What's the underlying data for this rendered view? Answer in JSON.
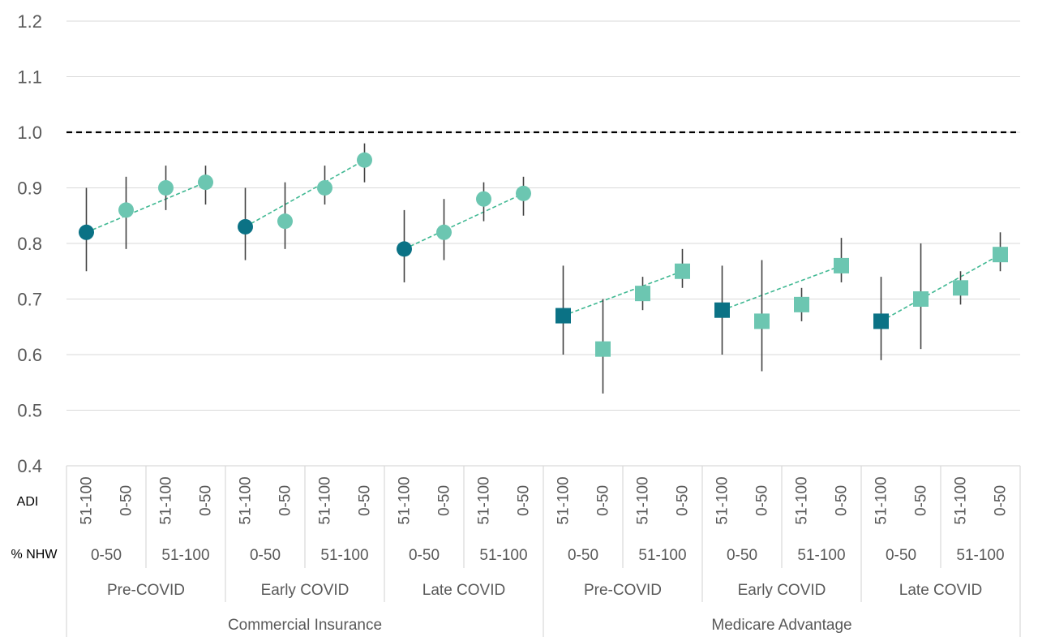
{
  "chart_data": {
    "type": "scatter",
    "ylim": [
      0.4,
      1.2
    ],
    "yticks": [
      "1.2",
      "1.1",
      "1.0",
      "0.9",
      "0.8",
      "0.7",
      "0.6",
      "0.5",
      "0.4"
    ],
    "grid": true,
    "reference_line": 1.0,
    "row_labels": {
      "adi": "ADI",
      "nhw": "% NHW"
    },
    "groups": [
      {
        "name": "Commercial Insurance",
        "marker": "circle",
        "periods": [
          {
            "name": "Pre-COVID",
            "nhw": [
              {
                "label": "0-50",
                "points": [
                  {
                    "adi": "51-100",
                    "y": 0.82,
                    "low": 0.75,
                    "high": 0.9,
                    "ref": true
                  },
                  {
                    "adi": "0-50",
                    "y": 0.86,
                    "low": 0.79,
                    "high": 0.92
                  }
                ]
              },
              {
                "label": "51-100",
                "points": [
                  {
                    "adi": "51-100",
                    "y": 0.9,
                    "low": 0.86,
                    "high": 0.94
                  },
                  {
                    "adi": "0-50",
                    "y": 0.91,
                    "low": 0.87,
                    "high": 0.94
                  }
                ]
              }
            ]
          },
          {
            "name": "Early COVID",
            "nhw": [
              {
                "label": "0-50",
                "points": [
                  {
                    "adi": "51-100",
                    "y": 0.83,
                    "low": 0.77,
                    "high": 0.9,
                    "ref": true
                  },
                  {
                    "adi": "0-50",
                    "y": 0.84,
                    "low": 0.79,
                    "high": 0.91
                  }
                ]
              },
              {
                "label": "51-100",
                "points": [
                  {
                    "adi": "51-100",
                    "y": 0.9,
                    "low": 0.87,
                    "high": 0.94
                  },
                  {
                    "adi": "0-50",
                    "y": 0.95,
                    "low": 0.91,
                    "high": 0.98
                  }
                ]
              }
            ]
          },
          {
            "name": "Late COVID",
            "nhw": [
              {
                "label": "0-50",
                "points": [
                  {
                    "adi": "51-100",
                    "y": 0.79,
                    "low": 0.73,
                    "high": 0.86,
                    "ref": true
                  },
                  {
                    "adi": "0-50",
                    "y": 0.82,
                    "low": 0.77,
                    "high": 0.88
                  }
                ]
              },
              {
                "label": "51-100",
                "points": [
                  {
                    "adi": "51-100",
                    "y": 0.88,
                    "low": 0.84,
                    "high": 0.91
                  },
                  {
                    "adi": "0-50",
                    "y": 0.89,
                    "low": 0.85,
                    "high": 0.92
                  }
                ]
              }
            ]
          }
        ]
      },
      {
        "name": "Medicare Advantage",
        "marker": "square",
        "periods": [
          {
            "name": "Pre-COVID",
            "nhw": [
              {
                "label": "0-50",
                "points": [
                  {
                    "adi": "51-100",
                    "y": 0.67,
                    "low": 0.6,
                    "high": 0.76,
                    "ref": true
                  },
                  {
                    "adi": "0-50",
                    "y": 0.61,
                    "low": 0.53,
                    "high": 0.7
                  }
                ]
              },
              {
                "label": "51-100",
                "points": [
                  {
                    "adi": "51-100",
                    "y": 0.71,
                    "low": 0.68,
                    "high": 0.74
                  },
                  {
                    "adi": "0-50",
                    "y": 0.75,
                    "low": 0.72,
                    "high": 0.79
                  }
                ]
              }
            ]
          },
          {
            "name": "Early COVID",
            "nhw": [
              {
                "label": "0-50",
                "points": [
                  {
                    "adi": "51-100",
                    "y": 0.68,
                    "low": 0.6,
                    "high": 0.76,
                    "ref": true
                  },
                  {
                    "adi": "0-50",
                    "y": 0.66,
                    "low": 0.57,
                    "high": 0.77
                  }
                ]
              },
              {
                "label": "51-100",
                "points": [
                  {
                    "adi": "51-100",
                    "y": 0.69,
                    "low": 0.66,
                    "high": 0.72
                  },
                  {
                    "adi": "0-50",
                    "y": 0.76,
                    "low": 0.73,
                    "high": 0.81
                  }
                ]
              }
            ]
          },
          {
            "name": "Late COVID",
            "nhw": [
              {
                "label": "0-50",
                "points": [
                  {
                    "adi": "51-100",
                    "y": 0.66,
                    "low": 0.59,
                    "high": 0.74,
                    "ref": true
                  },
                  {
                    "adi": "0-50",
                    "y": 0.7,
                    "low": 0.61,
                    "high": 0.8
                  }
                ]
              },
              {
                "label": "51-100",
                "points": [
                  {
                    "adi": "51-100",
                    "y": 0.72,
                    "low": 0.69,
                    "high": 0.75
                  },
                  {
                    "adi": "0-50",
                    "y": 0.78,
                    "low": 0.75,
                    "high": 0.82
                  }
                ]
              }
            ]
          }
        ]
      }
    ]
  },
  "colors": {
    "reference_marker": "#0b7285",
    "marker": "#6cc6b1",
    "trend_line": "#3fb892",
    "error_bar": "#404040",
    "grid": "#d9d9d9",
    "ref_line": "#000000",
    "axis_text": "#595959"
  }
}
